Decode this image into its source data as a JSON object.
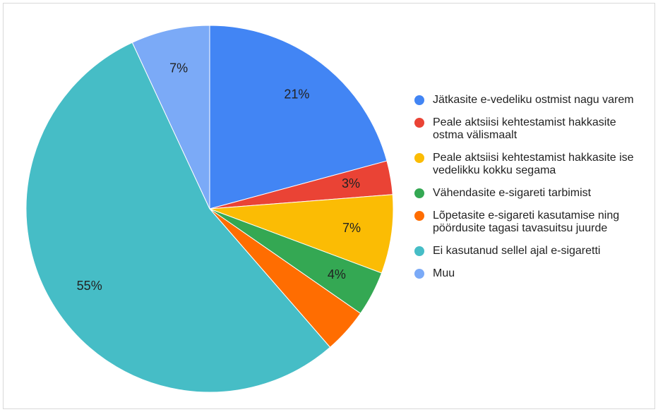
{
  "chart_data": {
    "type": "pie",
    "categories": [
      "Jätkasite e-vedeliku ostmist nagu varem",
      "Peale aktsiisi kehtestamist hakkasite ostma välismaalt",
      "Peale aktsiisi kehtestamist hakkasite ise vedelikku kokku segama",
      "Vähendasite e-sigareti tarbimist",
      "Lõpetasite e-sigareti kasutamise ning pöördusite tagasi tavasuitsu juurde",
      "Ei kasutanud sellel ajal e-sigaretti",
      "Muu"
    ],
    "values": [
      21,
      3,
      7,
      4,
      4,
      55,
      7
    ],
    "value_labels": [
      "21%",
      "3%",
      "7%",
      "4%",
      null,
      "55%",
      "7%"
    ],
    "colors": [
      "#4285f4",
      "#ea4335",
      "#fbbc04",
      "#34a853",
      "#ff6d01",
      "#46bdc6",
      "#7baaf7"
    ],
    "legend": "right"
  }
}
